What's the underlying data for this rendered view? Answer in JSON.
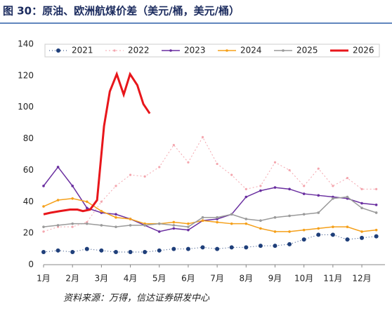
{
  "chart_data": {
    "type": "line",
    "title": "图 30：原油、欧洲航煤价差（美元/桶，美元/桶）",
    "source": "资料来源：万得，信达证券研发中心",
    "xlim": [
      1,
      12.8
    ],
    "xticks": [
      {
        "value": 1,
        "label": "1月"
      },
      {
        "value": 2,
        "label": "2月"
      },
      {
        "value": 3,
        "label": "3月"
      },
      {
        "value": 4,
        "label": "4月"
      },
      {
        "value": 5,
        "label": "5月"
      },
      {
        "value": 6,
        "label": "6月"
      },
      {
        "value": 7,
        "label": "7月"
      },
      {
        "value": 8,
        "label": "8月"
      },
      {
        "value": 9,
        "label": "9月"
      },
      {
        "value": 10,
        "label": "10月"
      },
      {
        "value": 11,
        "label": "11月"
      },
      {
        "value": 12,
        "label": "12月"
      }
    ],
    "ylim": [
      0,
      140
    ],
    "yticks": [
      0,
      20,
      40,
      60,
      80,
      100,
      120,
      140
    ],
    "grid": false,
    "legend": "top",
    "series": [
      {
        "name": "2021",
        "color": "#1f3f7a",
        "style": "dotted",
        "x": [
          1,
          1.5,
          2,
          2.5,
          3,
          3.5,
          4,
          4.5,
          5,
          5.5,
          6,
          6.5,
          7,
          7.5,
          8,
          8.5,
          9,
          9.5,
          10,
          10.5,
          11,
          11.5,
          12,
          12.5
        ],
        "values": [
          8,
          9,
          8,
          10,
          9,
          8,
          8,
          8,
          9,
          10,
          10,
          11,
          10,
          11,
          11,
          12,
          12,
          13,
          16,
          19,
          19,
          16,
          17,
          18
        ]
      },
      {
        "name": "2022",
        "color": "#f4a6ae",
        "style": "dashed",
        "x": [
          1,
          1.5,
          2,
          2.5,
          3,
          3.5,
          4,
          4.5,
          5,
          5.5,
          6,
          6.5,
          7,
          7.5,
          8,
          8.5,
          9,
          9.5,
          10,
          10.5,
          11,
          11.5,
          12,
          12.5
        ],
        "values": [
          21,
          24,
          24,
          27,
          40,
          50,
          57,
          56,
          62,
          76,
          65,
          81,
          64,
          57,
          48,
          50,
          65,
          60,
          50,
          61,
          50,
          55,
          48,
          48
        ]
      },
      {
        "name": "2023",
        "color": "#6a2fa0",
        "style": "solid",
        "x": [
          1,
          1.5,
          2,
          2.5,
          3,
          3.5,
          4,
          4.5,
          5,
          5.5,
          6,
          6.5,
          7,
          7.5,
          8,
          8.5,
          9,
          9.5,
          10,
          10.5,
          11,
          11.5,
          12,
          12.5
        ],
        "values": [
          50,
          62,
          50,
          36,
          33,
          32,
          29,
          25,
          21,
          23,
          22,
          28,
          29,
          32,
          43,
          47,
          49,
          48,
          45,
          44,
          43,
          42,
          39,
          38
        ]
      },
      {
        "name": "2024",
        "color": "#f5a01a",
        "style": "solid",
        "x": [
          1,
          1.5,
          2,
          2.5,
          3,
          3.5,
          4,
          4.5,
          5,
          5.5,
          6,
          6.5,
          7,
          7.5,
          8,
          8.5,
          9,
          9.5,
          10,
          10.5,
          11,
          11.5,
          12,
          12.5
        ],
        "values": [
          37,
          41,
          42,
          40,
          34,
          30,
          29,
          26,
          26,
          27,
          26,
          28,
          27,
          26,
          26,
          23,
          21,
          21,
          22,
          23,
          24,
          24,
          21,
          22
        ]
      },
      {
        "name": "2025",
        "color": "#9a9a9a",
        "style": "solid",
        "x": [
          1,
          1.5,
          2,
          2.5,
          3,
          3.5,
          4,
          4.5,
          5,
          5.5,
          6,
          6.5,
          7,
          7.5,
          8,
          8.5,
          9,
          9.5,
          10,
          10.5,
          11,
          11.5,
          12,
          12.5
        ],
        "values": [
          24,
          25,
          26,
          26,
          25,
          24,
          25,
          25,
          26,
          25,
          24,
          30,
          30,
          32,
          29,
          28,
          30,
          31,
          32,
          33,
          42,
          43,
          36,
          33
        ]
      },
      {
        "name": "2026",
        "color": "#e8161b",
        "style": "bold",
        "x": [
          1,
          1.24,
          1.56,
          1.92,
          2.17,
          2.36,
          2.61,
          2.85,
          3.09,
          3.29,
          3.53,
          3.77,
          3.99,
          4.24,
          4.45,
          4.67
        ],
        "values": [
          32,
          33,
          34,
          35,
          35,
          34,
          35,
          41,
          88,
          110,
          121,
          108,
          121,
          114,
          102,
          96
        ]
      }
    ]
  }
}
